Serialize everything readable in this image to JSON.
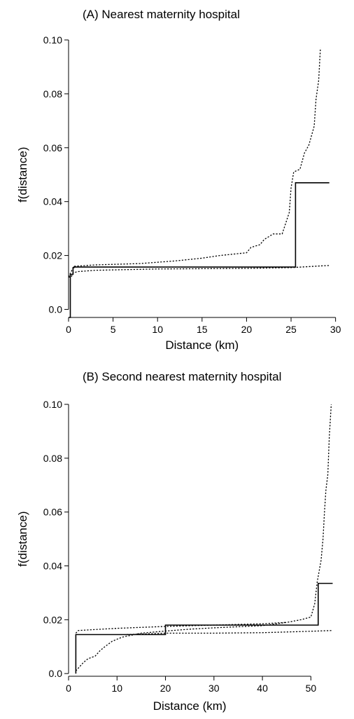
{
  "chart_data": [
    {
      "type": "line",
      "title": "(A) Nearest maternity hospital",
      "xlabel": "Distance (km)",
      "ylabel": "f(distance)",
      "xlim": [
        0,
        30.5
      ],
      "ylim": [
        -0.003,
        0.1
      ],
      "xticks": [
        0,
        5,
        10,
        15,
        20,
        25,
        30
      ],
      "yticks": [
        0.0,
        0.02,
        0.04,
        0.06,
        0.08,
        0.1
      ],
      "xtick_labels": [
        "0",
        "5",
        "10",
        "15",
        "20",
        "25",
        "30"
      ],
      "ytick_labels": [
        "0.0",
        "0.02",
        "0.04",
        "0.06",
        "0.08",
        "0.10"
      ],
      "grid": false,
      "series": [
        {
          "style": "solid",
          "points": [
            [
              0,
              -0.003
            ],
            [
              0.2,
              -0.003
            ],
            [
              0.2,
              0.013
            ],
            [
              0.5,
              0.013
            ],
            [
              0.5,
              0.0155
            ],
            [
              0.6,
              0.0155
            ],
            [
              0.6,
              0.0157
            ],
            [
              25.5,
              0.0157
            ],
            [
              25.5,
              0.047
            ],
            [
              29.3,
              0.047
            ]
          ]
        },
        {
          "style": "dotted",
          "points": [
            [
              0,
              0.012
            ],
            [
              0.3,
              0.014
            ],
            [
              0.6,
              0.016
            ],
            [
              3,
              0.0165
            ],
            [
              8,
              0.017
            ],
            [
              12,
              0.018
            ],
            [
              15,
              0.019
            ],
            [
              17,
              0.02
            ],
            [
              20,
              0.021
            ],
            [
              20.5,
              0.023
            ],
            [
              21.5,
              0.024
            ],
            [
              22,
              0.026
            ],
            [
              23,
              0.028
            ],
            [
              24,
              0.028
            ],
            [
              24.5,
              0.033
            ],
            [
              24.8,
              0.036
            ],
            [
              25,
              0.045
            ],
            [
              25.3,
              0.051
            ],
            [
              26,
              0.052
            ],
            [
              26.5,
              0.058
            ],
            [
              27,
              0.061
            ],
            [
              27.6,
              0.068
            ],
            [
              27.8,
              0.078
            ],
            [
              28.1,
              0.085
            ],
            [
              28.3,
              0.097
            ]
          ]
        },
        {
          "style": "dotted",
          "points": [
            [
              0,
              0.012
            ],
            [
              0.3,
              0.012
            ],
            [
              0.5,
              0.0135
            ],
            [
              1,
              0.014
            ],
            [
              3,
              0.0145
            ],
            [
              10,
              0.015
            ],
            [
              20,
              0.0152
            ],
            [
              25,
              0.0155
            ],
            [
              29.3,
              0.0163
            ]
          ]
        }
      ]
    },
    {
      "type": "line",
      "title": "(B) Second nearest maternity hospital",
      "xlabel": "Distance (km)",
      "ylabel": "f(distance)",
      "xlim": [
        0,
        55
      ],
      "ylim": [
        -0.001,
        0.1
      ],
      "xticks": [
        0,
        10,
        20,
        30,
        40,
        50
      ],
      "yticks": [
        0.0,
        0.02,
        0.04,
        0.06,
        0.08,
        0.1
      ],
      "xtick_labels": [
        "0",
        "10",
        "20",
        "30",
        "40",
        "50"
      ],
      "ytick_labels": [
        "0.0",
        "0.02",
        "0.04",
        "0.06",
        "0.08",
        "0.10"
      ],
      "grid": false,
      "series": [
        {
          "style": "solid",
          "points": [
            [
              1.5,
              0.0
            ],
            [
              1.5,
              0.0145
            ],
            [
              20,
              0.0145
            ],
            [
              20,
              0.018
            ],
            [
              51.5,
              0.018
            ],
            [
              51.5,
              0.0335
            ],
            [
              54.5,
              0.0335
            ]
          ]
        },
        {
          "style": "dotted",
          "points": [
            [
              1.5,
              0.001
            ],
            [
              2,
              0.002
            ],
            [
              3,
              0.004
            ],
            [
              4,
              0.0055
            ],
            [
              5.5,
              0.0065
            ],
            [
              6.5,
              0.0085
            ],
            [
              7.5,
              0.01
            ],
            [
              9,
              0.012
            ],
            [
              11,
              0.0135
            ],
            [
              15,
              0.015
            ],
            [
              20,
              0.0158
            ],
            [
              25,
              0.0165
            ],
            [
              30,
              0.017
            ],
            [
              40,
              0.0178
            ],
            [
              45,
              0.019
            ],
            [
              48,
              0.02
            ],
            [
              50,
              0.021
            ],
            [
              50.8,
              0.026
            ],
            [
              51.3,
              0.034
            ],
            [
              52.1,
              0.042
            ],
            [
              52.5,
              0.05
            ],
            [
              52.8,
              0.06
            ],
            [
              53.1,
              0.068
            ],
            [
              53.5,
              0.074
            ],
            [
              53.8,
              0.088
            ],
            [
              54.2,
              0.1
            ]
          ]
        },
        {
          "style": "dotted",
          "points": [
            [
              1.5,
              0.015
            ],
            [
              2,
              0.016
            ],
            [
              10,
              0.0168
            ],
            [
              20,
              0.0175
            ],
            [
              30,
              0.018
            ],
            [
              40,
              0.0185
            ],
            [
              45,
              0.019
            ]
          ]
        },
        {
          "style": "dotted",
          "points": [
            [
              12,
              0.0145
            ],
            [
              20,
              0.015
            ],
            [
              30,
              0.015
            ],
            [
              40,
              0.0152
            ],
            [
              50,
              0.0157
            ],
            [
              54.5,
              0.016
            ]
          ]
        }
      ]
    }
  ]
}
